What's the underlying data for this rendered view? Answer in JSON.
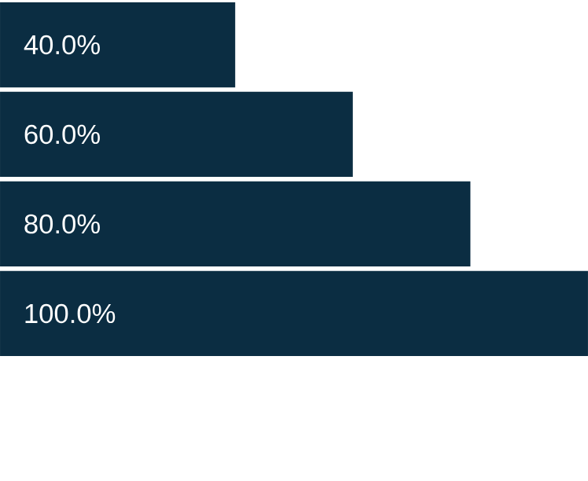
{
  "chart_data": {
    "type": "bar",
    "orientation": "horizontal",
    "categories": [
      null,
      null,
      null,
      null
    ],
    "values": [
      40,
      60,
      80,
      100
    ],
    "value_labels": [
      "40.0%",
      "60.0%",
      "80.0%",
      "100.0%"
    ],
    "color": "#0b2d42",
    "xlim": [
      0,
      100
    ],
    "tick_labels": false
  }
}
